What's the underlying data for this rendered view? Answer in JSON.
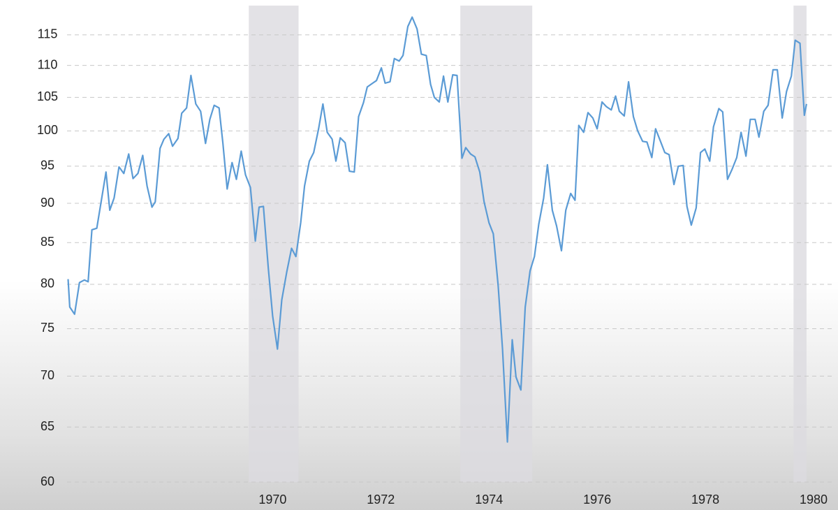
{
  "chart_data": {
    "type": "line",
    "log_y": true,
    "grid": true,
    "ylim": [
      60,
      120
    ],
    "yticks": [
      60,
      65,
      70,
      75,
      80,
      85,
      90,
      95,
      100,
      105,
      110,
      115
    ],
    "xlim": [
      1966.2,
      1980
    ],
    "xticks": [
      1970,
      1972,
      1974,
      1976,
      1978,
      1980
    ],
    "shaded_ranges": [
      [
        1969.56,
        1970.48
      ],
      [
        1973.47,
        1974.8
      ],
      [
        1979.63,
        1979.87
      ]
    ],
    "shade_color": "#dcdbe0",
    "x": [
      1966.22,
      1966.25,
      1966.34,
      1966.43,
      1966.52,
      1966.59,
      1966.66,
      1966.75,
      1966.83,
      1966.92,
      1966.99,
      1967.07,
      1967.16,
      1967.25,
      1967.34,
      1967.42,
      1967.51,
      1967.6,
      1967.68,
      1967.77,
      1967.83,
      1967.92,
      1967.99,
      1968.08,
      1968.15,
      1968.25,
      1968.32,
      1968.41,
      1968.49,
      1968.58,
      1968.67,
      1968.76,
      1968.84,
      1968.92,
      1969.01,
      1969.08,
      1969.16,
      1969.25,
      1969.33,
      1969.42,
      1969.5,
      1969.59,
      1969.68,
      1969.75,
      1969.83,
      1969.92,
      1970.0,
      1970.09,
      1970.17,
      1970.26,
      1970.35,
      1970.43,
      1970.52,
      1970.59,
      1970.68,
      1970.76,
      1970.85,
      1970.93,
      1971.01,
      1971.1,
      1971.17,
      1971.25,
      1971.34,
      1971.42,
      1971.51,
      1971.59,
      1971.68,
      1971.75,
      1971.85,
      1971.92,
      1972.01,
      1972.08,
      1972.17,
      1972.25,
      1972.34,
      1972.41,
      1972.5,
      1972.58,
      1972.67,
      1972.75,
      1972.84,
      1972.92,
      1972.99,
      1973.08,
      1973.16,
      1973.24,
      1973.33,
      1973.41,
      1973.5,
      1973.57,
      1973.66,
      1973.74,
      1973.83,
      1973.91,
      1974.0,
      1974.08,
      1974.17,
      1974.25,
      1974.34,
      1974.43,
      1974.5,
      1974.59,
      1974.67,
      1974.76,
      1974.84,
      1974.92,
      1975.01,
      1975.08,
      1975.17,
      1975.25,
      1975.34,
      1975.42,
      1975.51,
      1975.59,
      1975.66,
      1975.75,
      1975.83,
      1975.92,
      1976.0,
      1976.09,
      1976.17,
      1976.26,
      1976.34,
      1976.41,
      1976.5,
      1976.58,
      1976.67,
      1976.75,
      1976.84,
      1976.92,
      1977.01,
      1977.08,
      1977.17,
      1977.25,
      1977.33,
      1977.42,
      1977.5,
      1977.59,
      1977.66,
      1977.74,
      1977.83,
      1977.91,
      1977.99,
      1978.08,
      1978.15,
      1978.25,
      1978.32,
      1978.41,
      1978.49,
      1978.58,
      1978.66,
      1978.75,
      1978.83,
      1978.92,
      1978.99,
      1979.08,
      1979.16,
      1979.25,
      1979.33,
      1979.42,
      1979.5,
      1979.59,
      1979.66,
      1979.75,
      1979.83,
      1979.87
    ],
    "series": [
      {
        "color": "#5b9bd5",
        "values": [
          80.6,
          77.4,
          76.6,
          80.2,
          80.5,
          80.3,
          86.6,
          86.8,
          90.2,
          94.2,
          89.1,
          90.7,
          94.9,
          94.0,
          96.7,
          93.3,
          94.0,
          96.5,
          92.3,
          89.5,
          90.2,
          97.5,
          98.8,
          99.6,
          97.8,
          98.9,
          102.6,
          103.4,
          108.4,
          104.0,
          102.9,
          98.2,
          101.7,
          103.8,
          103.4,
          98.3,
          91.9,
          95.5,
          93.2,
          97.1,
          93.8,
          92.1,
          85.2,
          89.5,
          89.6,
          81.9,
          76.4,
          72.8,
          78.2,
          81.4,
          84.3,
          83.3,
          87.5,
          92.3,
          95.7,
          96.9,
          100.3,
          104.0,
          99.8,
          98.8,
          95.7,
          99.0,
          98.3,
          94.3,
          94.2,
          102.1,
          104.2,
          106.6,
          107.2,
          107.6,
          109.6,
          107.2,
          107.4,
          111.1,
          110.7,
          111.6,
          116.4,
          118.0,
          116.0,
          111.8,
          111.6,
          107.0,
          105.0,
          104.3,
          108.3,
          104.3,
          108.5,
          108.4,
          96.1,
          97.6,
          96.7,
          96.3,
          94.2,
          90.2,
          87.5,
          86.1,
          79.8,
          72.8,
          63.6,
          73.8,
          69.9,
          68.6,
          77.4,
          81.6,
          83.3,
          87.3,
          90.7,
          95.2,
          89.1,
          87.1,
          84.0,
          89.1,
          91.3,
          90.4,
          100.8,
          99.8,
          102.7,
          101.9,
          100.3,
          104.3,
          103.6,
          103.1,
          105.2,
          102.9,
          102.2,
          107.4,
          102.1,
          100.0,
          98.5,
          98.4,
          96.2,
          100.3,
          98.5,
          96.9,
          96.6,
          92.5,
          95.0,
          95.1,
          89.6,
          87.2,
          89.4,
          96.9,
          97.4,
          95.7,
          100.6,
          103.3,
          102.8,
          93.2,
          94.5,
          96.2,
          99.8,
          96.4,
          101.7,
          101.7,
          99.1,
          102.9,
          103.8,
          109.3,
          109.3,
          101.9,
          105.9,
          108.3,
          114.1,
          113.6,
          102.3,
          104.0
        ]
      }
    ]
  }
}
